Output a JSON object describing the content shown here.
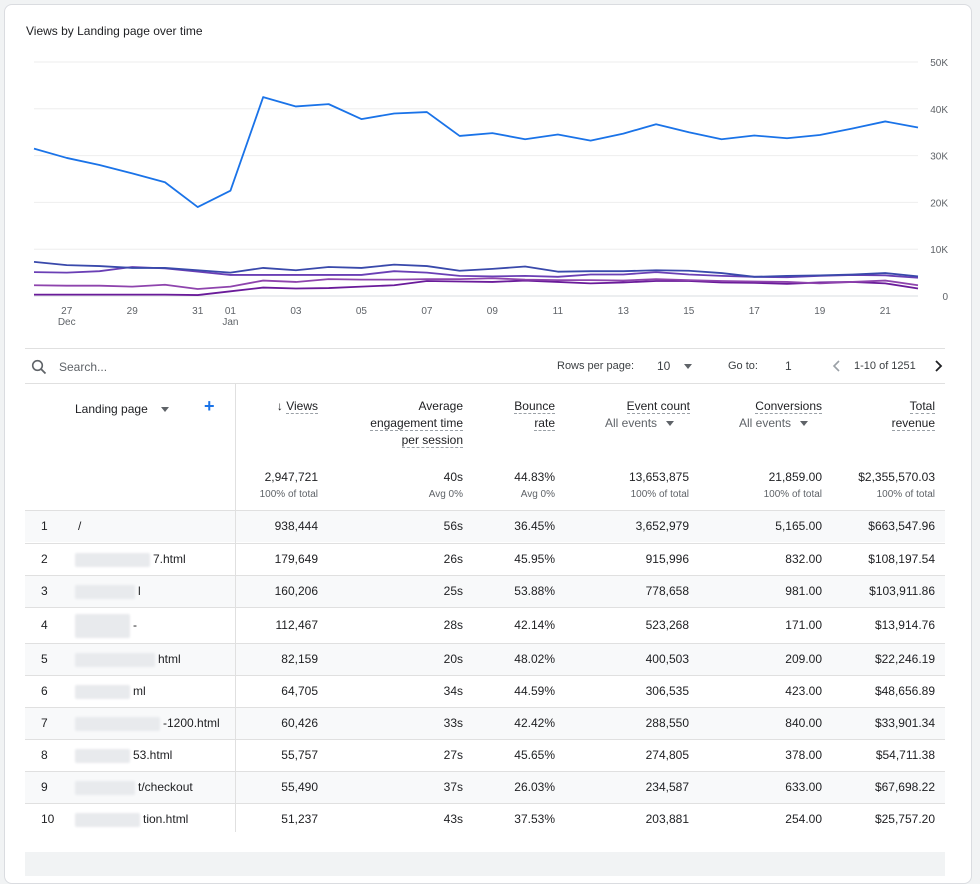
{
  "card_title": "Views by Landing page over time",
  "chart_data": {
    "type": "line",
    "title": "Views by Landing page over time",
    "x": [
      "Dec 26",
      "Dec 27",
      "Dec 28",
      "Dec 29",
      "Dec 30",
      "Dec 31",
      "Jan 01",
      "Jan 02",
      "Jan 03",
      "Jan 04",
      "Jan 05",
      "Jan 06",
      "Jan 07",
      "Jan 08",
      "Jan 09",
      "Jan 10",
      "Jan 11",
      "Jan 12",
      "Jan 13",
      "Jan 14",
      "Jan 15",
      "Jan 16",
      "Jan 17",
      "Jan 18",
      "Jan 19",
      "Jan 20",
      "Jan 21",
      "Jan 22"
    ],
    "x_ticks": [
      {
        "label": "27",
        "sub": "Dec",
        "index": 1
      },
      {
        "label": "29",
        "sub": "",
        "index": 3
      },
      {
        "label": "31",
        "sub": "",
        "index": 5
      },
      {
        "label": "01",
        "sub": "Jan",
        "index": 6
      },
      {
        "label": "03",
        "sub": "",
        "index": 8
      },
      {
        "label": "05",
        "sub": "",
        "index": 10
      },
      {
        "label": "07",
        "sub": "",
        "index": 12
      },
      {
        "label": "09",
        "sub": "",
        "index": 14
      },
      {
        "label": "11",
        "sub": "",
        "index": 16
      },
      {
        "label": "13",
        "sub": "",
        "index": 18
      },
      {
        "label": "15",
        "sub": "",
        "index": 20
      },
      {
        "label": "17",
        "sub": "",
        "index": 22
      },
      {
        "label": "19",
        "sub": "",
        "index": 24
      },
      {
        "label": "21",
        "sub": "",
        "index": 26
      }
    ],
    "y_ticks": [
      "0",
      "10K",
      "20K",
      "30K",
      "40K",
      "50K"
    ],
    "ylim": [
      0,
      50000
    ],
    "grid": true,
    "series": [
      {
        "color": "#1a73e8",
        "values": [
          31500,
          29500,
          28000,
          26200,
          24300,
          19000,
          22500,
          42500,
          40500,
          41000,
          37800,
          39000,
          39300,
          34200,
          34800,
          33500,
          34500,
          33200,
          34700,
          36700,
          35000,
          33500,
          34300,
          33700,
          34400,
          35800,
          37300,
          36000
        ]
      },
      {
        "color": "#3949ab",
        "values": [
          7300,
          6600,
          6400,
          6000,
          6000,
          5500,
          5000,
          6000,
          5500,
          6200,
          6000,
          6700,
          6400,
          5400,
          5800,
          6300,
          5200,
          5300,
          5300,
          5500,
          5400,
          4900,
          4100,
          4300,
          4400,
          4600,
          4900,
          4200
        ]
      },
      {
        "color": "#6a3fb5",
        "values": [
          5100,
          5000,
          5300,
          6200,
          5900,
          5200,
          4500,
          4500,
          4500,
          4500,
          4500,
          5300,
          5000,
          4300,
          4200,
          4300,
          4100,
          4600,
          4600,
          5100,
          4600,
          4300,
          4100,
          4000,
          4300,
          4500,
          4400,
          3900
        ]
      },
      {
        "color": "#8e44ad",
        "values": [
          2300,
          2200,
          2200,
          2000,
          2400,
          1500,
          2000,
          3300,
          3000,
          3600,
          3500,
          3500,
          3600,
          3600,
          3800,
          3500,
          3400,
          3400,
          3300,
          3600,
          3400,
          3200,
          3100,
          3000,
          2700,
          3000,
          3300,
          2300
        ]
      },
      {
        "color": "#6a1b9a",
        "values": [
          300,
          300,
          300,
          300,
          300,
          200,
          1000,
          1800,
          1600,
          1700,
          2000,
          2300,
          3200,
          3100,
          3000,
          3300,
          3000,
          2700,
          2900,
          3200,
          3200,
          2900,
          2800,
          2600,
          2900,
          3000,
          2700,
          1600
        ]
      }
    ]
  },
  "toolbar": {
    "search_placeholder": "Search...",
    "rows_per_page_label": "Rows per page:",
    "rows_per_page_value": "10",
    "goto_label": "Go to:",
    "goto_value": "1",
    "pagination": "1-10 of 1251"
  },
  "table": {
    "dimension_header": "Landing page",
    "headers": {
      "views": "Views",
      "engagement": [
        "Average",
        "engagement time",
        "per session"
      ],
      "bounce": [
        "Bounce",
        "rate"
      ],
      "event_count": "Event count",
      "event_sub": "All events",
      "conversions": "Conversions",
      "conv_sub": "All events",
      "revenue": [
        "Total",
        "revenue"
      ]
    },
    "totals": {
      "views": "2,947,721",
      "views_sub": "100% of total",
      "engagement": "40s",
      "engagement_sub": "Avg 0%",
      "bounce": "44.83%",
      "bounce_sub": "Avg 0%",
      "event_count": "13,653,875",
      "event_sub": "100% of total",
      "conversions": "21,859.00",
      "conv_sub": "100% of total",
      "revenue": "$2,355,570.03",
      "revenue_sub": "100% of total"
    },
    "rows": [
      {
        "n": "1",
        "page": "/",
        "views": "938,444",
        "eng": "56s",
        "bounce": "36.45%",
        "events": "3,652,979",
        "conv": "5,165.00",
        "rev": "$663,547.96"
      },
      {
        "n": "2",
        "page": "7.html",
        "views": "179,649",
        "eng": "26s",
        "bounce": "45.95%",
        "events": "915,996",
        "conv": "832.00",
        "rev": "$108,197.54"
      },
      {
        "n": "3",
        "page": "l",
        "views": "160,206",
        "eng": "25s",
        "bounce": "53.88%",
        "events": "778,658",
        "conv": "981.00",
        "rev": "$103,911.86"
      },
      {
        "n": "4",
        "page": "-",
        "views": "112,467",
        "eng": "28s",
        "bounce": "42.14%",
        "events": "523,268",
        "conv": "171.00",
        "rev": "$13,914.76"
      },
      {
        "n": "5",
        "page": "html",
        "views": "82,159",
        "eng": "20s",
        "bounce": "48.02%",
        "events": "400,503",
        "conv": "209.00",
        "rev": "$22,246.19"
      },
      {
        "n": "6",
        "page": "ml",
        "views": "64,705",
        "eng": "34s",
        "bounce": "44.59%",
        "events": "306,535",
        "conv": "423.00",
        "rev": "$48,656.89"
      },
      {
        "n": "7",
        "page": "-1200.html",
        "views": "60,426",
        "eng": "33s",
        "bounce": "42.42%",
        "events": "288,550",
        "conv": "840.00",
        "rev": "$33,901.34"
      },
      {
        "n": "8",
        "page": "53.html",
        "views": "55,757",
        "eng": "27s",
        "bounce": "45.65%",
        "events": "274,805",
        "conv": "378.00",
        "rev": "$54,711.38"
      },
      {
        "n": "9",
        "page": "t/checkout",
        "views": "55,490",
        "eng": "37s",
        "bounce": "26.03%",
        "events": "234,587",
        "conv": "633.00",
        "rev": "$67,698.22"
      },
      {
        "n": "10",
        "page": "tion.html",
        "views": "51,237",
        "eng": "43s",
        "bounce": "37.53%",
        "events": "203,881",
        "conv": "254.00",
        "rev": "$25,757.20"
      }
    ]
  }
}
